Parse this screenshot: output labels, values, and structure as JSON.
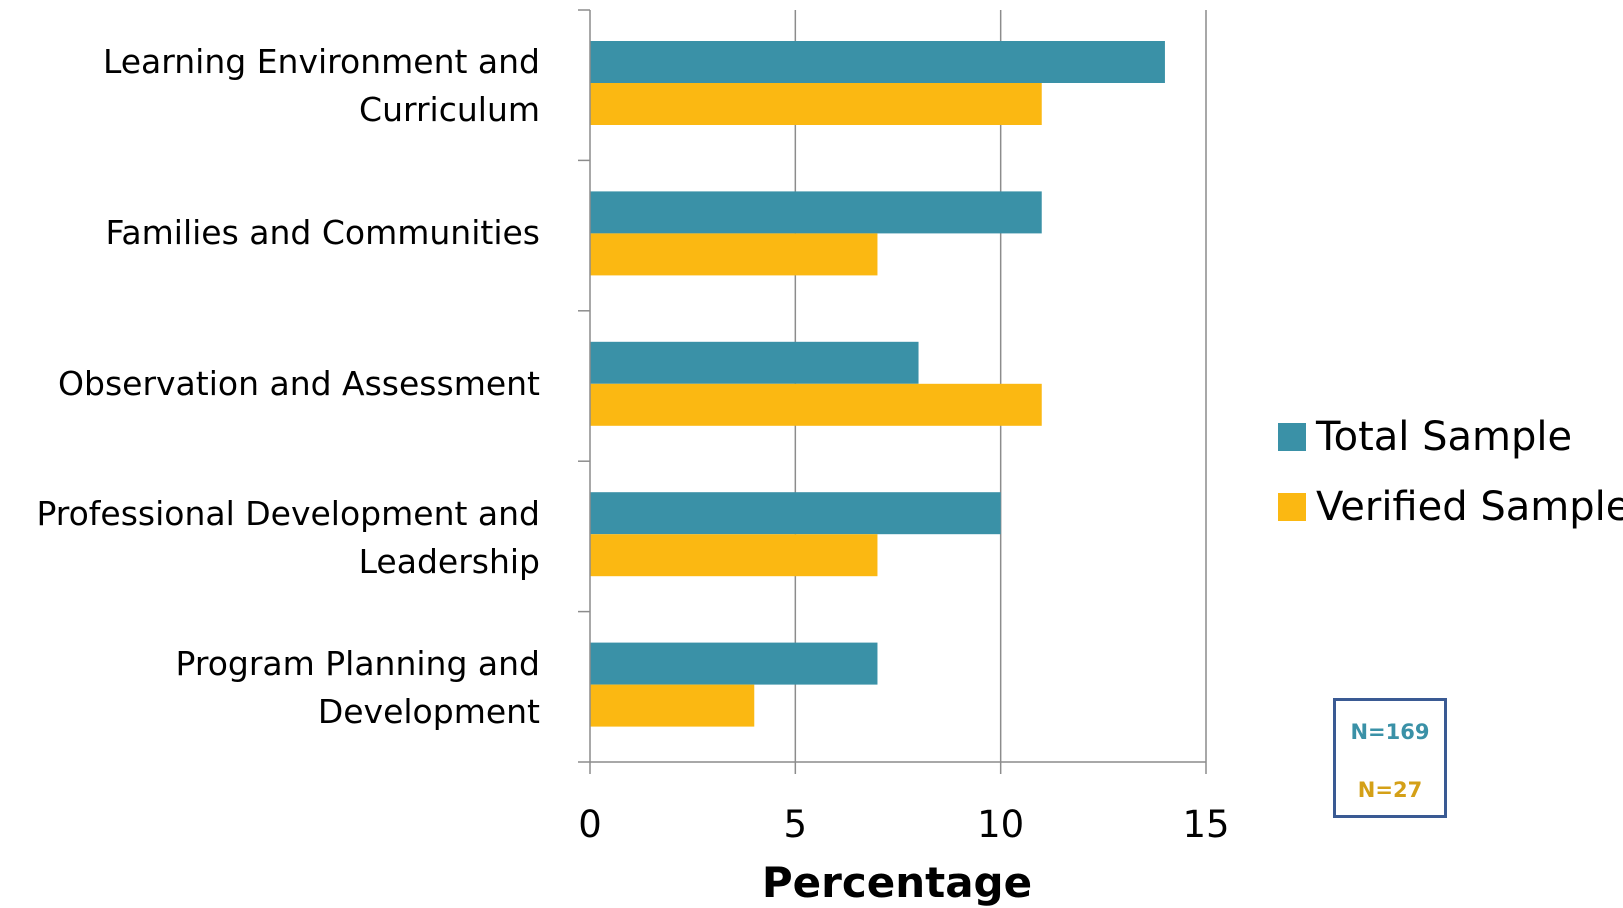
{
  "chart_data": {
    "type": "bar",
    "orientation": "horizontal",
    "categories": [
      "Learning Environment and Curriculum",
      "Families and Communities",
      "Observation and Assessment",
      "Professional Development and Leadership",
      "Program Planning and Development"
    ],
    "series": [
      {
        "name": "Total Sample",
        "color": "#3a91a7",
        "values": [
          14,
          11,
          8,
          10,
          7
        ]
      },
      {
        "name": "Verified Sample",
        "color": "#fbb812",
        "values": [
          11,
          7,
          11,
          7,
          4
        ]
      }
    ],
    "xlabel": "Percentage",
    "xlim": [
      0,
      15
    ],
    "xticks": [
      "0",
      "5",
      "10",
      "15"
    ],
    "grid": true,
    "legend_position": "right"
  },
  "annotations": {
    "n_total": "N=169",
    "n_verified": "N=27",
    "n_total_color": "#3a91a7",
    "n_verified_color": "#d4a017",
    "box_border_color": "#3a5a93"
  }
}
